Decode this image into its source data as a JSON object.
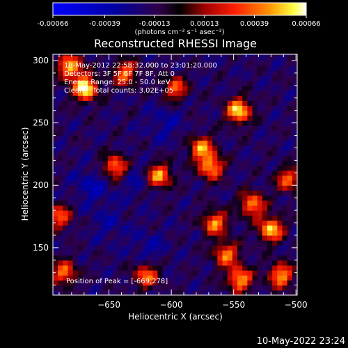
{
  "chart_data": {
    "type": "heatmap",
    "title": "Reconstructed RHESSI Image",
    "xlabel": "Heliocentric X (arcsec)",
    "ylabel": "Heliocentric Y (arcsec)",
    "xlim": [
      -695,
      -499
    ],
    "ylim": [
      112,
      305
    ],
    "x_ticks": [
      -650,
      -600,
      -550,
      -500
    ],
    "y_ticks": [
      150,
      200,
      250,
      300
    ],
    "colorbar": {
      "label": "(photons cm⁻² s⁻¹ asec⁻²)",
      "ticks": [
        -0.00066,
        -0.00039,
        -0.00013,
        0.00013,
        0.00039,
        0.00066
      ],
      "tick_labels": [
        "-0.00066",
        "-0.00039",
        "-0.00013",
        "0.00013",
        "0.00039",
        "0.00066"
      ],
      "range": [
        -0.00066,
        0.00066
      ]
    },
    "annotations": [
      "18-May-2012 22:58:32.000 to 23:01:20.000",
      "Detectors: 3F 5F 6F 7F 8F, Att 0",
      "Energy Range: 25.0 - 50.0 keV",
      "Clean    Total counts: 3.02E+05"
    ],
    "peak_label": "Position of Peak = [-669,278]",
    "peak": [
      -669,
      278
    ],
    "bright_sources": [
      {
        "x": -669,
        "y": 278,
        "value": 0.00066
      },
      {
        "x": -546,
        "y": 260,
        "value": 0.0006
      },
      {
        "x": -681,
        "y": 295,
        "value": 0.00052
      },
      {
        "x": -637,
        "y": 290,
        "value": 0.0004
      },
      {
        "x": -597,
        "y": 278,
        "value": 0.00035
      },
      {
        "x": -645,
        "y": 215,
        "value": 0.00045
      },
      {
        "x": -610,
        "y": 208,
        "value": 0.0005
      },
      {
        "x": -576,
        "y": 230,
        "value": 0.00045
      },
      {
        "x": -568,
        "y": 215,
        "value": 0.00048
      },
      {
        "x": -620,
        "y": 128,
        "value": 0.0004
      },
      {
        "x": -565,
        "y": 170,
        "value": 0.00045
      },
      {
        "x": -520,
        "y": 165,
        "value": 0.00055
      },
      {
        "x": -535,
        "y": 185,
        "value": 0.00045
      },
      {
        "x": -556,
        "y": 145,
        "value": 0.00042
      },
      {
        "x": -545,
        "y": 125,
        "value": 0.0005
      },
      {
        "x": -512,
        "y": 128,
        "value": 0.00048
      },
      {
        "x": -506,
        "y": 205,
        "value": 0.00035
      },
      {
        "x": -690,
        "y": 175,
        "value": 0.00035
      },
      {
        "x": -686,
        "y": 130,
        "value": 0.0004
      }
    ],
    "dark_sources": [
      {
        "x": -663,
        "y": 200,
        "value": -0.00035
      },
      {
        "x": -628,
        "y": 205,
        "value": -0.0003
      },
      {
        "x": -618,
        "y": 150,
        "value": -0.0003
      },
      {
        "x": -650,
        "y": 170,
        "value": -0.00028
      },
      {
        "x": -605,
        "y": 250,
        "value": -0.0003
      }
    ]
  },
  "footer": {
    "timestamp": "10-May-2022 23:24"
  }
}
